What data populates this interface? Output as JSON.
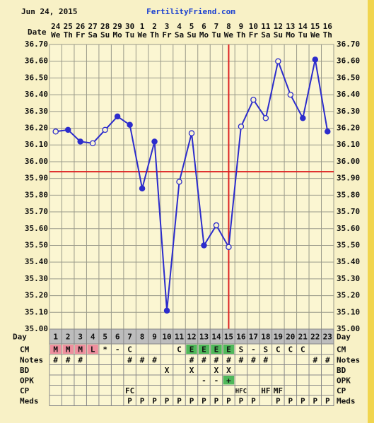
{
  "chart_data": {
    "type": "line",
    "header_date": "Jun 24, 2015",
    "site": "FertilityFriend.com",
    "x_label": "Date",
    "dates": [
      "24",
      "25",
      "26",
      "27",
      "28",
      "29",
      "30",
      "1",
      "2",
      "3",
      "4",
      "5",
      "6",
      "7",
      "8",
      "9",
      "10",
      "11",
      "12",
      "13",
      "14",
      "15",
      "16"
    ],
    "weekdays": [
      "We",
      "Th",
      "Fr",
      "Sa",
      "Su",
      "Mo",
      "Tu",
      "We",
      "Th",
      "Fr",
      "Sa",
      "Su",
      "Mo",
      "Tu",
      "We",
      "Th",
      "Fr",
      "Sa",
      "Su",
      "Mo",
      "Tu",
      "We",
      "Th"
    ],
    "series": [
      {
        "color": "#2c2ccc",
        "values": [
          36.18,
          36.19,
          36.12,
          36.11,
          36.19,
          36.27,
          36.22,
          35.84,
          36.12,
          35.11,
          35.88,
          36.17,
          35.5,
          35.62,
          35.49,
          36.21,
          36.37,
          36.26,
          36.6,
          36.4,
          36.26,
          36.61,
          36.18
        ],
        "filled": [
          false,
          true,
          true,
          false,
          false,
          true,
          true,
          true,
          true,
          true,
          false,
          false,
          true,
          false,
          false,
          false,
          false,
          false,
          false,
          false,
          true,
          true,
          true
        ]
      }
    ],
    "ylim": [
      35.0,
      36.7
    ],
    "yticks": [
      {
        "value": 36.7,
        "label": "36.70"
      },
      {
        "value": 36.6,
        "label": "36.60"
      },
      {
        "value": 36.5,
        "label": "36.50"
      },
      {
        "value": 36.4,
        "label": "36.40"
      },
      {
        "value": 36.3,
        "label": "36.30"
      },
      {
        "value": 36.2,
        "label": "36.20"
      },
      {
        "value": 36.1,
        "label": "36.10"
      },
      {
        "value": 36.0,
        "label": "36.00"
      },
      {
        "value": 35.9,
        "label": "35.90"
      },
      {
        "value": 35.8,
        "label": "35.80"
      },
      {
        "value": 35.7,
        "label": "35.70"
      },
      {
        "value": 35.6,
        "label": "35.60"
      },
      {
        "value": 35.5,
        "label": "35.50"
      },
      {
        "value": 35.4,
        "label": "35.40"
      },
      {
        "value": 35.3,
        "label": "35.30"
      },
      {
        "value": 35.2,
        "label": "35.20"
      },
      {
        "value": 35.1,
        "label": "35.10"
      },
      {
        "value": 35.0,
        "label": "35.00"
      }
    ],
    "grid": true,
    "coverline": 35.94,
    "ovulation_day": 15,
    "marker_color": "#dd2222",
    "table": [
      {
        "label": "Day",
        "cells": [
          1,
          2,
          3,
          4,
          5,
          6,
          7,
          8,
          9,
          10,
          11,
          12,
          13,
          14,
          15,
          16,
          17,
          18,
          19,
          20,
          21,
          22,
          23
        ]
      },
      {
        "label": "CM",
        "cells": [
          "M",
          "M",
          "M",
          "L",
          "*",
          "-",
          "C",
          null,
          null,
          null,
          "C",
          "E",
          "E",
          "E",
          "E",
          "S",
          "-",
          "S",
          "C",
          "C",
          "C",
          null,
          null
        ],
        "highlight": {
          "M": "#ee8f9e",
          "L": "#ee8f9e",
          "E": "#4fb85a"
        }
      },
      {
        "label": "Notes",
        "cells": [
          "#",
          "#",
          "#",
          null,
          null,
          null,
          "#",
          "#",
          "#",
          null,
          null,
          "#",
          "#",
          "#",
          "#",
          "#",
          "#",
          "#",
          null,
          null,
          null,
          "#",
          "#"
        ]
      },
      {
        "label": "BD",
        "cells": [
          null,
          null,
          null,
          null,
          null,
          null,
          null,
          null,
          null,
          "X",
          null,
          "X",
          null,
          "X",
          "X",
          null,
          null,
          null,
          null,
          null,
          null,
          null,
          null
        ]
      },
      {
        "label": "OPK",
        "cells": [
          null,
          null,
          null,
          null,
          null,
          null,
          null,
          null,
          null,
          null,
          null,
          null,
          "-",
          "-",
          "+",
          null,
          null,
          null,
          null,
          null,
          null,
          null,
          null
        ],
        "highlight": {
          "+": "#4fb85a"
        }
      },
      {
        "label": "CP",
        "cells": [
          null,
          null,
          null,
          null,
          null,
          null,
          "FC",
          null,
          null,
          null,
          null,
          null,
          null,
          null,
          null,
          "HFC",
          null,
          "HF",
          "MF",
          null,
          null,
          null,
          null
        ]
      },
      {
        "label": "Meds",
        "cells": [
          null,
          null,
          null,
          null,
          null,
          null,
          "P",
          "P",
          "P",
          "P",
          "P",
          "P",
          "P",
          "P",
          "P",
          "P",
          "P",
          null,
          "P",
          "P",
          "P",
          "P",
          "P"
        ]
      }
    ]
  }
}
